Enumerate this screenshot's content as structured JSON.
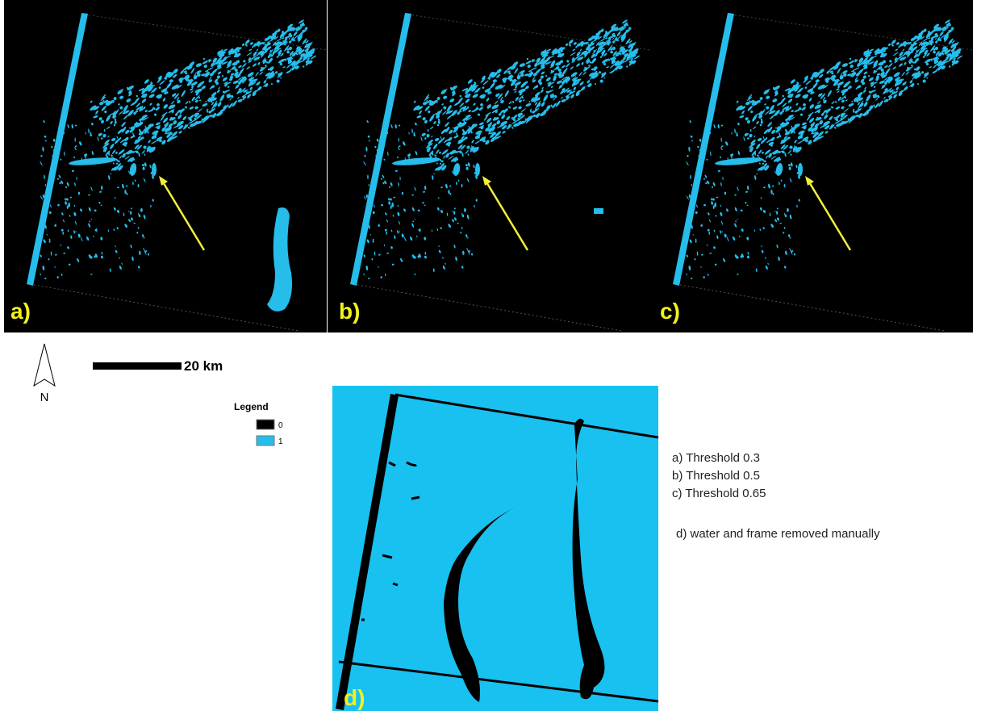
{
  "panels": [
    {
      "label": "a)"
    },
    {
      "label": "b)"
    },
    {
      "label": "c)"
    },
    {
      "label": "d)"
    }
  ],
  "north": "N",
  "scale": "20 km",
  "legend": {
    "title": "Legend",
    "items": [
      "0",
      "1"
    ]
  },
  "captions": [
    "a) Threshold 0.3",
    "b) Threshold 0.5",
    "c) Threshold 0.65",
    "d) water and frame removed manually"
  ]
}
